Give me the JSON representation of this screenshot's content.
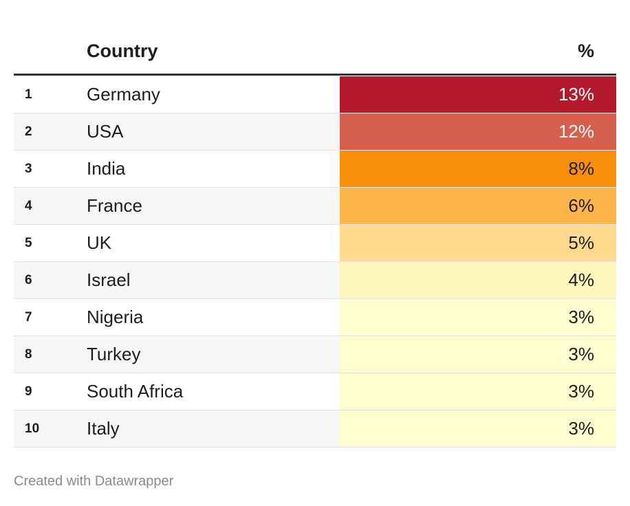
{
  "header": {
    "country": "Country",
    "share": "%"
  },
  "rows": [
    {
      "rank": "1",
      "country": "Germany",
      "share": "13%",
      "fill": "#b31b2c",
      "ink": "#ffffff"
    },
    {
      "rank": "2",
      "country": "USA",
      "share": "12%",
      "fill": "#d6604d",
      "ink": "#ffffff"
    },
    {
      "rank": "3",
      "country": "India",
      "share": "8%",
      "fill": "#f88f0c",
      "ink": "#1d1d1d"
    },
    {
      "rank": "4",
      "country": "France",
      "share": "6%",
      "fill": "#fdb448",
      "ink": "#1d1d1d"
    },
    {
      "rank": "5",
      "country": "UK",
      "share": "5%",
      "fill": "#fed98e",
      "ink": "#1d1d1d"
    },
    {
      "rank": "6",
      "country": "Israel",
      "share": "4%",
      "fill": "#fef7bb",
      "ink": "#1d1d1d"
    },
    {
      "rank": "7",
      "country": "Nigeria",
      "share": "3%",
      "fill": "#fefdd0",
      "ink": "#1d1d1d"
    },
    {
      "rank": "8",
      "country": "Turkey",
      "share": "3%",
      "fill": "#fefdd0",
      "ink": "#1d1d1d"
    },
    {
      "rank": "9",
      "country": "South Africa",
      "share": "3%",
      "fill": "#fefdd0",
      "ink": "#1d1d1d"
    },
    {
      "rank": "10",
      "country": "Italy",
      "share": "3%",
      "fill": "#fefdd0",
      "ink": "#1d1d1d"
    }
  ],
  "footer": "Created with Datawrapper"
}
